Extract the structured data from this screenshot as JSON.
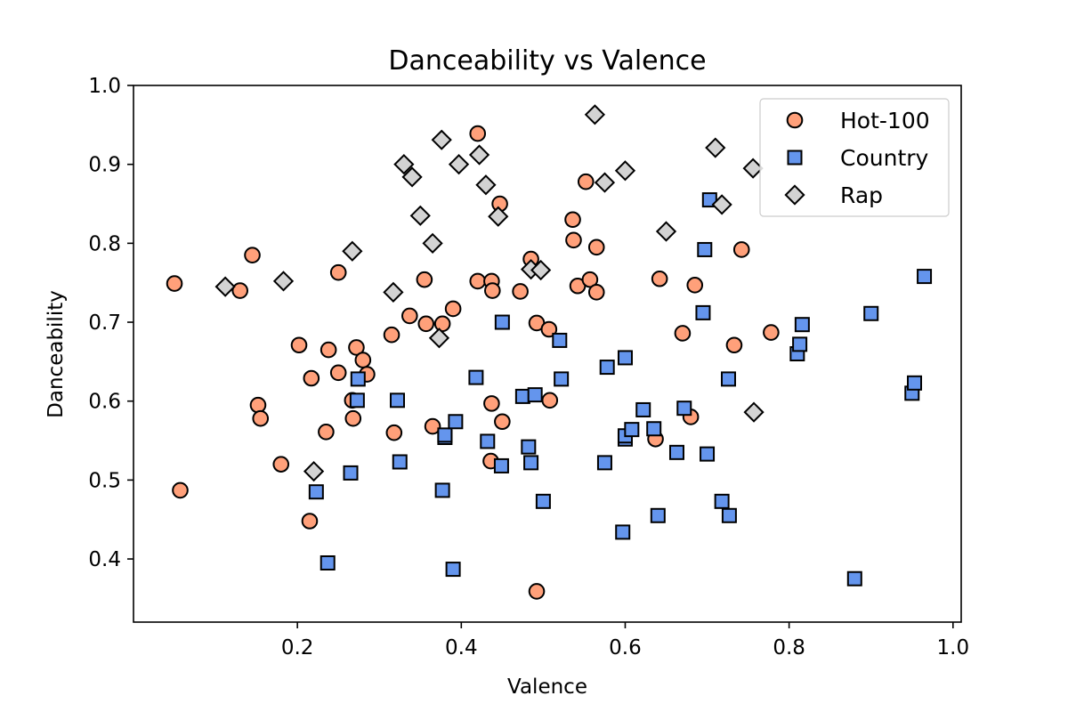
{
  "chart_data": {
    "type": "scatter",
    "title": "Danceability vs Valence",
    "xlabel": "Valence",
    "ylabel": "Danceability",
    "xlim": [
      0.0,
      1.01
    ],
    "ylim": [
      0.32,
      1.0
    ],
    "xticks": [
      "0.2",
      "0.4",
      "0.6",
      "0.8",
      "1.0"
    ],
    "yticks": [
      "0.4",
      "0.5",
      "0.6",
      "0.7",
      "0.8",
      "0.9",
      "1.0"
    ],
    "grid": false,
    "legend": "top-right",
    "series": [
      {
        "name": "Hot-100",
        "marker": "circle",
        "color": "#ffa07a",
        "points": [
          [
            0.05,
            0.749
          ],
          [
            0.057,
            0.487
          ],
          [
            0.13,
            0.74
          ],
          [
            0.145,
            0.785
          ],
          [
            0.152,
            0.595
          ],
          [
            0.155,
            0.578
          ],
          [
            0.18,
            0.52
          ],
          [
            0.202,
            0.671
          ],
          [
            0.215,
            0.448
          ],
          [
            0.217,
            0.629
          ],
          [
            0.235,
            0.561
          ],
          [
            0.238,
            0.665
          ],
          [
            0.25,
            0.636
          ],
          [
            0.25,
            0.763
          ],
          [
            0.267,
            0.601
          ],
          [
            0.268,
            0.578
          ],
          [
            0.272,
            0.668
          ],
          [
            0.28,
            0.652
          ],
          [
            0.285,
            0.634
          ],
          [
            0.315,
            0.684
          ],
          [
            0.318,
            0.56
          ],
          [
            0.355,
            0.754
          ],
          [
            0.357,
            0.698
          ],
          [
            0.337,
            0.708
          ],
          [
            0.365,
            0.568
          ],
          [
            0.377,
            0.698
          ],
          [
            0.39,
            0.717
          ],
          [
            0.42,
            0.939
          ],
          [
            0.42,
            0.752
          ],
          [
            0.437,
            0.752
          ],
          [
            0.438,
            0.74
          ],
          [
            0.437,
            0.597
          ],
          [
            0.436,
            0.524
          ],
          [
            0.447,
            0.85
          ],
          [
            0.45,
            0.574
          ],
          [
            0.472,
            0.739
          ],
          [
            0.485,
            0.78
          ],
          [
            0.492,
            0.699
          ],
          [
            0.507,
            0.691
          ],
          [
            0.508,
            0.601
          ],
          [
            0.492,
            0.359
          ],
          [
            0.536,
            0.83
          ],
          [
            0.537,
            0.804
          ],
          [
            0.542,
            0.746
          ],
          [
            0.552,
            0.878
          ],
          [
            0.557,
            0.754
          ],
          [
            0.565,
            0.738
          ],
          [
            0.565,
            0.795
          ],
          [
            0.637,
            0.552
          ],
          [
            0.642,
            0.755
          ],
          [
            0.67,
            0.686
          ],
          [
            0.68,
            0.58
          ],
          [
            0.685,
            0.747
          ],
          [
            0.733,
            0.671
          ],
          [
            0.742,
            0.792
          ],
          [
            0.778,
            0.687
          ]
        ]
      },
      {
        "name": "Country",
        "marker": "square",
        "color": "#6495ed",
        "points": [
          [
            0.223,
            0.485
          ],
          [
            0.237,
            0.395
          ],
          [
            0.265,
            0.509
          ],
          [
            0.273,
            0.601
          ],
          [
            0.274,
            0.628
          ],
          [
            0.322,
            0.601
          ],
          [
            0.325,
            0.523
          ],
          [
            0.377,
            0.487
          ],
          [
            0.38,
            0.554
          ],
          [
            0.38,
            0.557
          ],
          [
            0.39,
            0.387
          ],
          [
            0.393,
            0.574
          ],
          [
            0.418,
            0.63
          ],
          [
            0.432,
            0.549
          ],
          [
            0.449,
            0.518
          ],
          [
            0.45,
            0.7
          ],
          [
            0.475,
            0.606
          ],
          [
            0.482,
            0.542
          ],
          [
            0.485,
            0.522
          ],
          [
            0.49,
            0.608
          ],
          [
            0.5,
            0.473
          ],
          [
            0.52,
            0.677
          ],
          [
            0.522,
            0.628
          ],
          [
            0.575,
            0.522
          ],
          [
            0.578,
            0.643
          ],
          [
            0.597,
            0.434
          ],
          [
            0.6,
            0.552
          ],
          [
            0.6,
            0.556
          ],
          [
            0.6,
            0.655
          ],
          [
            0.608,
            0.564
          ],
          [
            0.622,
            0.589
          ],
          [
            0.635,
            0.565
          ],
          [
            0.64,
            0.455
          ],
          [
            0.663,
            0.535
          ],
          [
            0.672,
            0.591
          ],
          [
            0.695,
            0.712
          ],
          [
            0.697,
            0.792
          ],
          [
            0.7,
            0.533
          ],
          [
            0.703,
            0.855
          ],
          [
            0.718,
            0.473
          ],
          [
            0.726,
            0.628
          ],
          [
            0.727,
            0.455
          ],
          [
            0.81,
            0.66
          ],
          [
            0.813,
            0.672
          ],
          [
            0.816,
            0.697
          ],
          [
            0.88,
            0.375
          ],
          [
            0.9,
            0.711
          ],
          [
            0.95,
            0.61
          ],
          [
            0.953,
            0.623
          ],
          [
            0.965,
            0.758
          ]
        ]
      },
      {
        "name": "Rap",
        "marker": "diamond",
        "color": "#d3d3d3",
        "points": [
          [
            0.112,
            0.745
          ],
          [
            0.183,
            0.752
          ],
          [
            0.22,
            0.511
          ],
          [
            0.267,
            0.79
          ],
          [
            0.317,
            0.738
          ],
          [
            0.33,
            0.9
          ],
          [
            0.34,
            0.884
          ],
          [
            0.35,
            0.835
          ],
          [
            0.365,
            0.8
          ],
          [
            0.373,
            0.68
          ],
          [
            0.376,
            0.931
          ],
          [
            0.397,
            0.9
          ],
          [
            0.422,
            0.912
          ],
          [
            0.43,
            0.874
          ],
          [
            0.445,
            0.834
          ],
          [
            0.485,
            0.767
          ],
          [
            0.497,
            0.766
          ],
          [
            0.563,
            0.963
          ],
          [
            0.575,
            0.877
          ],
          [
            0.6,
            0.892
          ],
          [
            0.65,
            0.815
          ],
          [
            0.71,
            0.921
          ],
          [
            0.718,
            0.849
          ],
          [
            0.757,
            0.586
          ],
          [
            0.756,
            0.895
          ]
        ]
      }
    ]
  }
}
